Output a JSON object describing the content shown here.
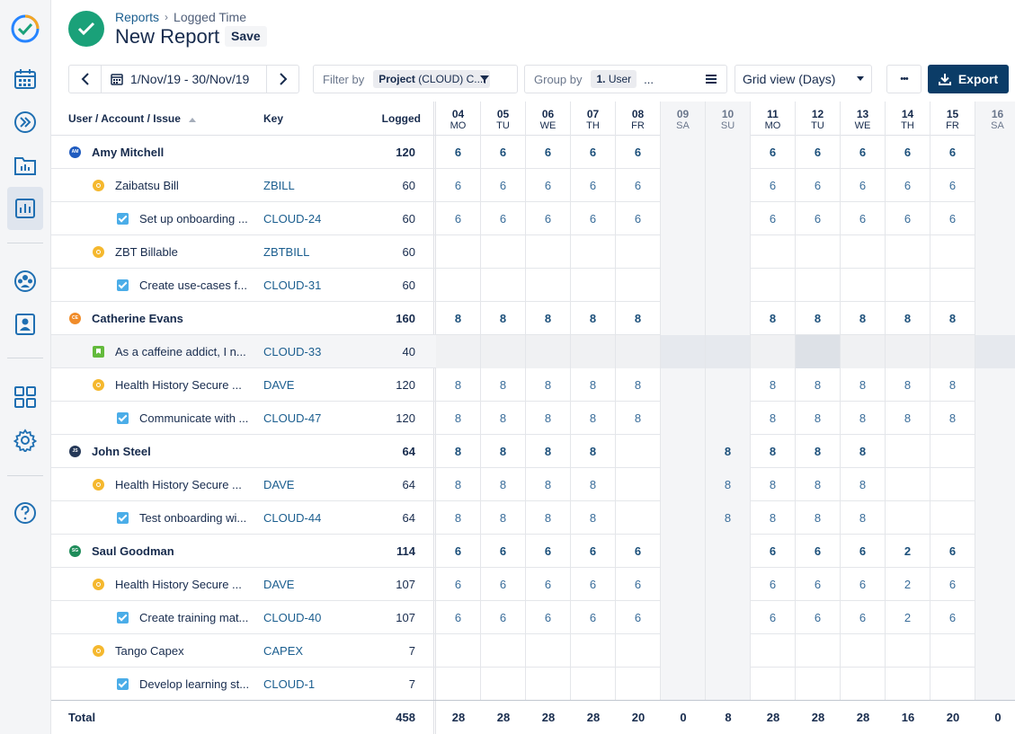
{
  "breadcrumb": {
    "root": "Reports",
    "sep": "›",
    "current": "Logged Time"
  },
  "page": {
    "title": "New Report",
    "save_label": "Save"
  },
  "toolbar": {
    "date_range": "1/Nov/19 - 30/Nov/19",
    "filter_label": "Filter by",
    "filter_chip_bold": "Project",
    "filter_chip_rest": "(CLOUD) C...",
    "group_label": "Group by",
    "group_chip": "1. User",
    "group_more": "...",
    "view_select": "Grid view (Days)",
    "more": "•••",
    "export_label": "Export"
  },
  "table": {
    "col_user": "User / Account / Issue",
    "col_key": "Key",
    "col_logged": "Logged",
    "days": [
      {
        "n": "04",
        "d": "MO",
        "we": false
      },
      {
        "n": "05",
        "d": "TU",
        "we": false
      },
      {
        "n": "06",
        "d": "WE",
        "we": false
      },
      {
        "n": "07",
        "d": "TH",
        "we": false
      },
      {
        "n": "08",
        "d": "FR",
        "we": false
      },
      {
        "n": "09",
        "d": "SA",
        "we": true
      },
      {
        "n": "10",
        "d": "SU",
        "we": true
      },
      {
        "n": "11",
        "d": "MO",
        "we": false
      },
      {
        "n": "12",
        "d": "TU",
        "we": false
      },
      {
        "n": "13",
        "d": "WE",
        "we": false
      },
      {
        "n": "14",
        "d": "TH",
        "we": false
      },
      {
        "n": "15",
        "d": "FR",
        "we": false
      },
      {
        "n": "16",
        "d": "SA",
        "we": true
      }
    ],
    "rows": [
      {
        "level": 0,
        "icon": "avatar",
        "avatar_text": "AM",
        "avatar_color": "#1f5bbf",
        "name": "Amy Mitchell",
        "key": "",
        "logged": "120",
        "cells": [
          "6",
          "6",
          "6",
          "6",
          "6",
          "",
          "",
          "6",
          "6",
          "6",
          "6",
          "6",
          ""
        ]
      },
      {
        "level": 1,
        "icon": "account",
        "name": "Zaibatsu Bill",
        "key": "ZBILL",
        "logged": "60",
        "cells": [
          "6",
          "6",
          "6",
          "6",
          "6",
          "",
          "",
          "6",
          "6",
          "6",
          "6",
          "6",
          ""
        ]
      },
      {
        "level": 2,
        "icon": "task",
        "name": "Set up onboarding ...",
        "key": "CLOUD-24",
        "logged": "60",
        "cells": [
          "6",
          "6",
          "6",
          "6",
          "6",
          "",
          "",
          "6",
          "6",
          "6",
          "6",
          "6",
          ""
        ]
      },
      {
        "level": 1,
        "icon": "account",
        "name": "ZBT Billable",
        "key": "ZBTBILL",
        "logged": "60",
        "cells": [
          "",
          "",
          "",
          "",
          "",
          "",
          "",
          "",
          "",
          "",
          "",
          "",
          ""
        ]
      },
      {
        "level": 2,
        "icon": "task",
        "name": "Create use-cases f...",
        "key": "CLOUD-31",
        "logged": "60",
        "cells": [
          "",
          "",
          "",
          "",
          "",
          "",
          "",
          "",
          "",
          "",
          "",
          "",
          ""
        ]
      },
      {
        "level": 0,
        "icon": "avatar",
        "avatar_text": "CE",
        "avatar_color": "#f08c2a",
        "name": "Catherine Evans",
        "key": "",
        "logged": "160",
        "cells": [
          "8",
          "8",
          "8",
          "8",
          "8",
          "",
          "",
          "8",
          "8",
          "8",
          "8",
          "8",
          ""
        ]
      },
      {
        "level": 1,
        "icon": "story",
        "name": "As a caffeine addict, I n...",
        "key": "CLOUD-33",
        "logged": "40",
        "cells": [
          "",
          "",
          "",
          "",
          "",
          "",
          "",
          "",
          "",
          "",
          "",
          "",
          ""
        ],
        "highlight": true
      },
      {
        "level": 1,
        "icon": "account",
        "name": "Health History Secure ...",
        "key": "DAVE",
        "logged": "120",
        "cells": [
          "8",
          "8",
          "8",
          "8",
          "8",
          "",
          "",
          "8",
          "8",
          "8",
          "8",
          "8",
          ""
        ]
      },
      {
        "level": 2,
        "icon": "task",
        "name": "Communicate with ...",
        "key": "CLOUD-47",
        "logged": "120",
        "cells": [
          "8",
          "8",
          "8",
          "8",
          "8",
          "",
          "",
          "8",
          "8",
          "8",
          "8",
          "8",
          ""
        ]
      },
      {
        "level": 0,
        "icon": "avatar",
        "avatar_text": "JS",
        "avatar_color": "#253858",
        "name": "John Steel",
        "key": "",
        "logged": "64",
        "cells": [
          "8",
          "8",
          "8",
          "8",
          "",
          "",
          "8",
          "8",
          "8",
          "8",
          "",
          "",
          ""
        ]
      },
      {
        "level": 1,
        "icon": "account",
        "name": "Health History Secure ...",
        "key": "DAVE",
        "logged": "64",
        "cells": [
          "8",
          "8",
          "8",
          "8",
          "",
          "",
          "8",
          "8",
          "8",
          "8",
          "",
          "",
          ""
        ]
      },
      {
        "level": 2,
        "icon": "task",
        "name": "Test onboarding wi...",
        "key": "CLOUD-44",
        "logged": "64",
        "cells": [
          "8",
          "8",
          "8",
          "8",
          "",
          "",
          "8",
          "8",
          "8",
          "8",
          "",
          "",
          ""
        ]
      },
      {
        "level": 0,
        "icon": "avatar",
        "avatar_text": "SG",
        "avatar_color": "#1e8c5a",
        "name": "Saul Goodman",
        "key": "",
        "logged": "114",
        "cells": [
          "6",
          "6",
          "6",
          "6",
          "6",
          "",
          "",
          "6",
          "6",
          "6",
          "2",
          "6",
          ""
        ]
      },
      {
        "level": 1,
        "icon": "account",
        "name": "Health History Secure ...",
        "key": "DAVE",
        "logged": "107",
        "cells": [
          "6",
          "6",
          "6",
          "6",
          "6",
          "",
          "",
          "6",
          "6",
          "6",
          "2",
          "6",
          ""
        ]
      },
      {
        "level": 2,
        "icon": "task",
        "name": "Create training mat...",
        "key": "CLOUD-40",
        "logged": "107",
        "cells": [
          "6",
          "6",
          "6",
          "6",
          "6",
          "",
          "",
          "6",
          "6",
          "6",
          "2",
          "6",
          ""
        ]
      },
      {
        "level": 1,
        "icon": "account",
        "name": "Tango Capex",
        "key": "CAPEX",
        "logged": "7",
        "cells": [
          "",
          "",
          "",
          "",
          "",
          "",
          "",
          "",
          "",
          "",
          "",
          "",
          ""
        ]
      },
      {
        "level": 2,
        "icon": "task",
        "name": "Develop learning st...",
        "key": "CLOUD-1",
        "logged": "7",
        "cells": [
          "",
          "",
          "",
          "",
          "",
          "",
          "",
          "",
          "",
          "",
          "",
          "",
          ""
        ]
      }
    ],
    "total": {
      "label": "Total",
      "logged": "458",
      "cells": [
        "28",
        "28",
        "28",
        "28",
        "20",
        "0",
        "8",
        "28",
        "28",
        "28",
        "16",
        "20",
        "0"
      ]
    }
  }
}
